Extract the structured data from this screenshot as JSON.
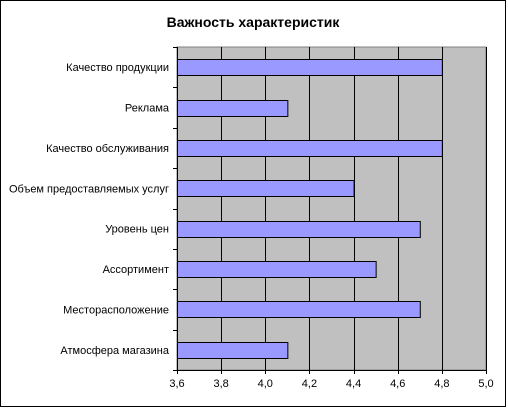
{
  "chart_data": {
    "type": "bar",
    "orientation": "horizontal",
    "title": "Важность характеристик",
    "xlabel": "",
    "ylabel": "",
    "categories": [
      "Качество продукции",
      "Реклама",
      "Качество обслуживания",
      "Объем предоставляемых услуг",
      "Уровень цен",
      "Ассортимент",
      "Месторасположение",
      "Атмосфера магазина"
    ],
    "values": [
      4.8,
      4.1,
      4.8,
      4.4,
      4.7,
      4.5,
      4.7,
      4.1
    ],
    "xlim": [
      3.6,
      5.0
    ],
    "x_ticks": [
      3.6,
      3.8,
      4.0,
      4.2,
      4.4,
      4.6,
      4.8,
      5.0
    ],
    "x_tick_labels": [
      "3,6",
      "3,8",
      "4,0",
      "4,2",
      "4,4",
      "4,6",
      "4,8",
      "5,0"
    ],
    "grid": true,
    "legend": "none",
    "colors": {
      "bar_fill": "#9999ff",
      "bar_stroke": "#000000",
      "plot_background": "#c0c0c0",
      "gridline": "#000000"
    }
  }
}
